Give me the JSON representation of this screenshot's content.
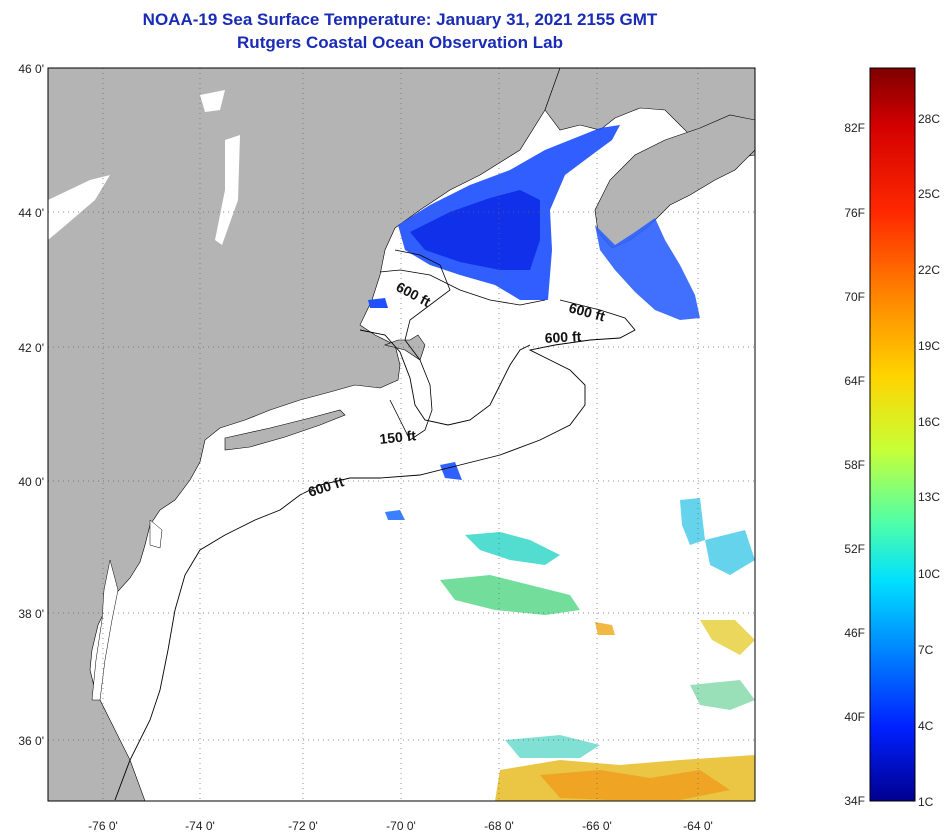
{
  "header": {
    "title": "NOAA-19 Sea Surface Temperature:  January 31, 2021 2155 GMT",
    "subtitle": "Rutgers Coastal Ocean Observation Lab"
  },
  "map": {
    "lon_range": [
      -77,
      -63
    ],
    "lat_range": [
      35,
      46
    ],
    "lon_ticks": [
      "-76 0'",
      "-74 0'",
      "-72 0'",
      "-70 0'",
      "-68 0'",
      "-66 0'",
      "-64 0'"
    ],
    "lat_ticks": [
      "46 0'",
      "44 0'",
      "42 0'",
      "40 0'",
      "38 0'",
      "36 0'"
    ],
    "contour_labels": [
      "600 ft",
      "600 ft",
      "600 ft",
      "150 ft",
      "600 ft"
    ],
    "land_color": "#b4b4b4",
    "water_color": "#ffffff"
  },
  "colorbar": {
    "f_labels": [
      "82F",
      "76F",
      "70F",
      "64F",
      "58F",
      "52F",
      "46F",
      "40F",
      "34F"
    ],
    "c_labels": [
      "28C",
      "25C",
      "22C",
      "19C",
      "16C",
      "13C",
      "10C",
      "7C",
      "4C",
      "1C"
    ],
    "colors": [
      "#7f0000",
      "#d40000",
      "#ff2a00",
      "#ff7f00",
      "#ffd400",
      "#c8ff36",
      "#60ff9c",
      "#00d4ff",
      "#007fff",
      "#0020ff",
      "#00008f"
    ]
  }
}
